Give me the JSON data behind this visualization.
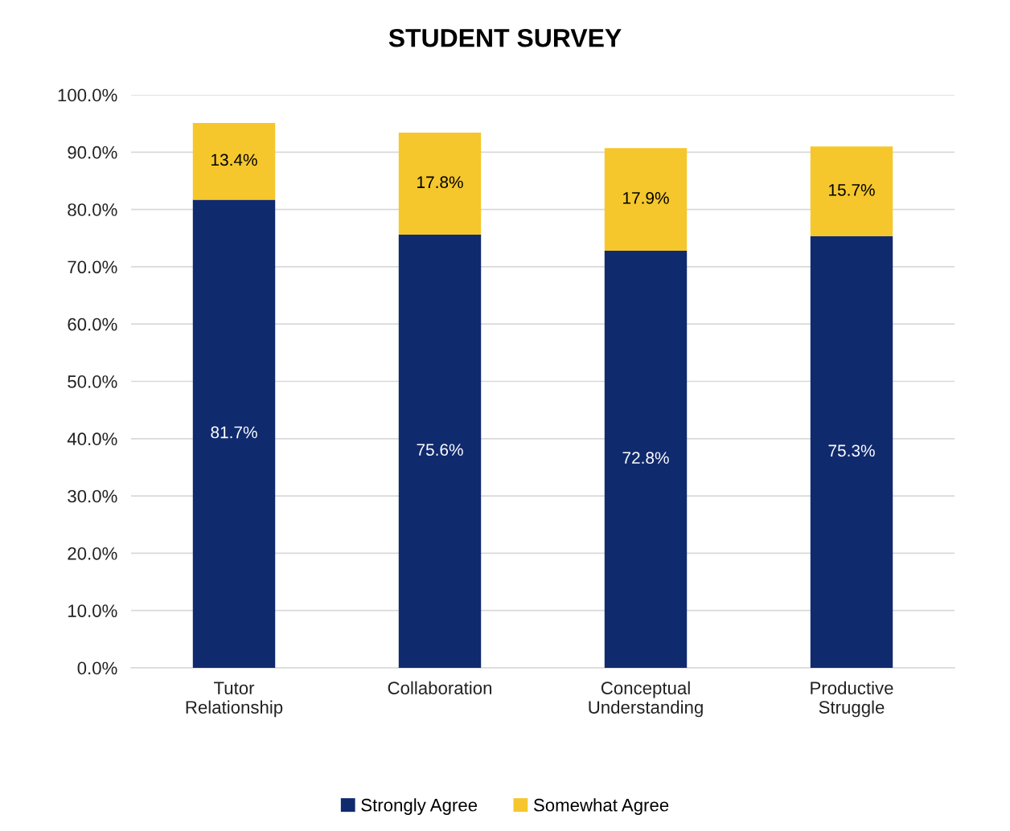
{
  "chart_data": {
    "type": "bar",
    "title": "STUDENT SURVEY",
    "stacked": true,
    "categories": [
      "Tutor\nRelationship",
      "Collaboration",
      "Conceptual\nUnderstanding",
      "Productive\nStruggle"
    ],
    "series": [
      {
        "name": "Strongly Agree",
        "color": "#102a6e",
        "values": [
          81.7,
          75.6,
          72.8,
          75.3
        ],
        "value_labels": [
          "81.7%",
          "75.6%",
          "72.8%",
          "75.3%"
        ]
      },
      {
        "name": "Somewhat Agree",
        "color": "#f5c72c",
        "values": [
          13.4,
          17.8,
          17.9,
          15.7
        ],
        "value_labels": [
          "13.4%",
          "17.8%",
          "17.9%",
          "15.7%"
        ]
      }
    ],
    "ylim": [
      0,
      100
    ],
    "yticks": [
      {
        "value": 0,
        "label": "0.0%"
      },
      {
        "value": 10,
        "label": "10.0%"
      },
      {
        "value": 20,
        "label": "20.0%"
      },
      {
        "value": 30,
        "label": "30.0%"
      },
      {
        "value": 40,
        "label": "40.0%"
      },
      {
        "value": 50,
        "label": "50.0%"
      },
      {
        "value": 60,
        "label": "60.0%"
      },
      {
        "value": 70,
        "label": "70.0%"
      },
      {
        "value": 80,
        "label": "80.0%"
      },
      {
        "value": 90,
        "label": "90.0%"
      },
      {
        "value": 100,
        "label": "100.0%"
      }
    ],
    "grid": "y",
    "legend": "bottom"
  }
}
